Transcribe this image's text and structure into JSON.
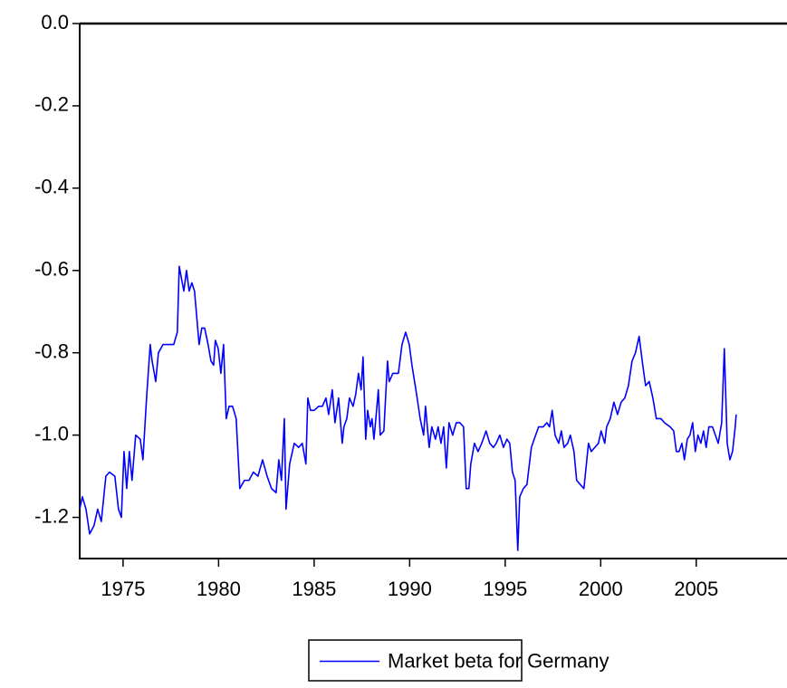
{
  "chart_data": {
    "type": "line",
    "x": [
      1972.73,
      1972.87,
      1973.06,
      1973.25,
      1973.48,
      1973.67,
      1973.86,
      1974.1,
      1974.29,
      1974.57,
      1974.76,
      1974.91,
      1975.05,
      1975.19,
      1975.33,
      1975.47,
      1975.66,
      1975.9,
      1976.04,
      1976.23,
      1976.42,
      1976.52,
      1976.71,
      1976.85,
      1977.09,
      1977.37,
      1977.65,
      1977.84,
      1977.94,
      1978.18,
      1978.32,
      1978.46,
      1978.6,
      1978.74,
      1978.98,
      1979.12,
      1979.27,
      1979.45,
      1979.6,
      1979.74,
      1979.83,
      1979.98,
      1980.12,
      1980.26,
      1980.4,
      1980.55,
      1980.73,
      1980.92,
      1981.11,
      1981.35,
      1981.59,
      1981.82,
      1982.06,
      1982.3,
      1982.54,
      1982.77,
      1983.01,
      1983.15,
      1983.29,
      1983.44,
      1983.53,
      1983.72,
      1983.96,
      1984.19,
      1984.38,
      1984.57,
      1984.67,
      1984.81,
      1985.0,
      1985.24,
      1985.43,
      1985.62,
      1985.76,
      1985.95,
      1986.09,
      1986.28,
      1986.47,
      1986.56,
      1986.71,
      1986.85,
      1987.04,
      1987.18,
      1987.32,
      1987.46,
      1987.56,
      1987.7,
      1987.8,
      1987.94,
      1988.03,
      1988.13,
      1988.27,
      1988.36,
      1988.46,
      1988.65,
      1988.84,
      1988.93,
      1989.12,
      1989.41,
      1989.6,
      1989.79,
      1989.98,
      1990.12,
      1990.36,
      1990.55,
      1990.73,
      1990.83,
      1991.02,
      1991.16,
      1991.35,
      1991.49,
      1991.64,
      1991.78,
      1991.92,
      1992.06,
      1992.25,
      1992.44,
      1992.63,
      1992.82,
      1992.96,
      1993.1,
      1993.2,
      1993.39,
      1993.58,
      1993.77,
      1994.0,
      1994.19,
      1994.38,
      1994.53,
      1994.72,
      1994.91,
      1995.09,
      1995.24,
      1995.38,
      1995.52,
      1995.66,
      1995.76,
      1995.95,
      1996.14,
      1996.37,
      1996.52,
      1996.75,
      1996.99,
      1997.18,
      1997.32,
      1997.46,
      1997.61,
      1997.8,
      1997.94,
      1998.08,
      1998.27,
      1998.41,
      1998.6,
      1998.74,
      1998.93,
      1999.12,
      1999.36,
      1999.5,
      1999.69,
      1999.88,
      2000.02,
      2000.21,
      2000.31,
      2000.5,
      2000.69,
      2000.88,
      2001.07,
      2001.26,
      2001.45,
      2001.64,
      2001.82,
      2002.01,
      2002.2,
      2002.35,
      2002.54,
      2002.73,
      2002.91,
      2003.15,
      2003.34,
      2003.63,
      2003.82,
      2003.96,
      2004.1,
      2004.25,
      2004.38,
      2004.53,
      2004.67,
      2004.81,
      2004.95,
      2005.09,
      2005.24,
      2005.38,
      2005.52,
      2005.66,
      2005.85,
      2006.0,
      2006.15,
      2006.33,
      2006.47,
      2006.62,
      2006.76,
      2006.9,
      2007.04,
      2007.09
    ],
    "series": [
      {
        "name": "Market beta for Germany",
        "color": "#0000ff",
        "values": [
          -1.18,
          -1.15,
          -1.18,
          -1.24,
          -1.22,
          -1.18,
          -1.21,
          -1.1,
          -1.09,
          -1.1,
          -1.18,
          -1.2,
          -1.04,
          -1.13,
          -1.04,
          -1.11,
          -1.0,
          -1.01,
          -1.06,
          -0.91,
          -0.78,
          -0.82,
          -0.87,
          -0.8,
          -0.78,
          -0.78,
          -0.78,
          -0.75,
          -0.59,
          -0.65,
          -0.6,
          -0.65,
          -0.63,
          -0.65,
          -0.78,
          -0.74,
          -0.74,
          -0.78,
          -0.82,
          -0.83,
          -0.77,
          -0.79,
          -0.85,
          -0.78,
          -0.96,
          -0.93,
          -0.93,
          -0.96,
          -1.13,
          -1.11,
          -1.11,
          -1.09,
          -1.1,
          -1.06,
          -1.1,
          -1.13,
          -1.14,
          -1.06,
          -1.11,
          -0.96,
          -1.18,
          -1.07,
          -1.02,
          -1.03,
          -1.02,
          -1.07,
          -0.91,
          -0.94,
          -0.94,
          -0.93,
          -0.93,
          -0.91,
          -0.95,
          -0.89,
          -0.97,
          -0.91,
          -1.02,
          -0.98,
          -0.96,
          -0.91,
          -0.93,
          -0.9,
          -0.85,
          -0.89,
          -0.81,
          -1.01,
          -0.94,
          -0.98,
          -0.96,
          -1.01,
          -0.94,
          -0.89,
          -1.0,
          -0.99,
          -0.82,
          -0.87,
          -0.85,
          -0.85,
          -0.78,
          -0.75,
          -0.78,
          -0.83,
          -0.9,
          -0.96,
          -1.0,
          -0.93,
          -1.03,
          -0.98,
          -1.01,
          -0.98,
          -1.02,
          -0.98,
          -1.08,
          -0.97,
          -1.0,
          -0.97,
          -0.97,
          -0.98,
          -1.13,
          -1.13,
          -1.07,
          -1.02,
          -1.04,
          -1.02,
          -0.99,
          -1.02,
          -1.03,
          -1.02,
          -1.0,
          -1.03,
          -1.01,
          -1.02,
          -1.09,
          -1.11,
          -1.28,
          -1.15,
          -1.13,
          -1.12,
          -1.03,
          -1.01,
          -0.98,
          -0.98,
          -0.97,
          -0.98,
          -0.94,
          -1.0,
          -1.02,
          -0.99,
          -1.03,
          -1.02,
          -1.0,
          -1.04,
          -1.11,
          -1.12,
          -1.13,
          -1.02,
          -1.04,
          -1.03,
          -1.02,
          -0.99,
          -1.02,
          -0.98,
          -0.96,
          -0.92,
          -0.95,
          -0.92,
          -0.91,
          -0.88,
          -0.82,
          -0.8,
          -0.76,
          -0.83,
          -0.88,
          -0.87,
          -0.91,
          -0.96,
          -0.96,
          -0.97,
          -0.98,
          -0.99,
          -1.04,
          -1.04,
          -1.02,
          -1.06,
          -1.01,
          -1.0,
          -0.97,
          -1.04,
          -1.0,
          -1.02,
          -0.99,
          -1.03,
          -0.98,
          -0.98,
          -1.0,
          -1.02,
          -0.97,
          -0.79,
          -1.02,
          -1.06,
          -1.04,
          -0.98,
          -0.95
        ]
      }
    ],
    "xlim": [
      1972.73,
      2009.75
    ],
    "xticks": [
      1975,
      1980,
      1985,
      1990,
      1995,
      2000,
      2005
    ],
    "ylim": [
      -1.3,
      0
    ],
    "yticks": [
      {
        "value": 0,
        "label": "0.0"
      },
      -0.2,
      -0.4,
      -0.6,
      -0.8,
      {
        "value": -1,
        "label": "-1.0"
      },
      -1.2
    ],
    "grid": false,
    "legend": "bottom"
  }
}
